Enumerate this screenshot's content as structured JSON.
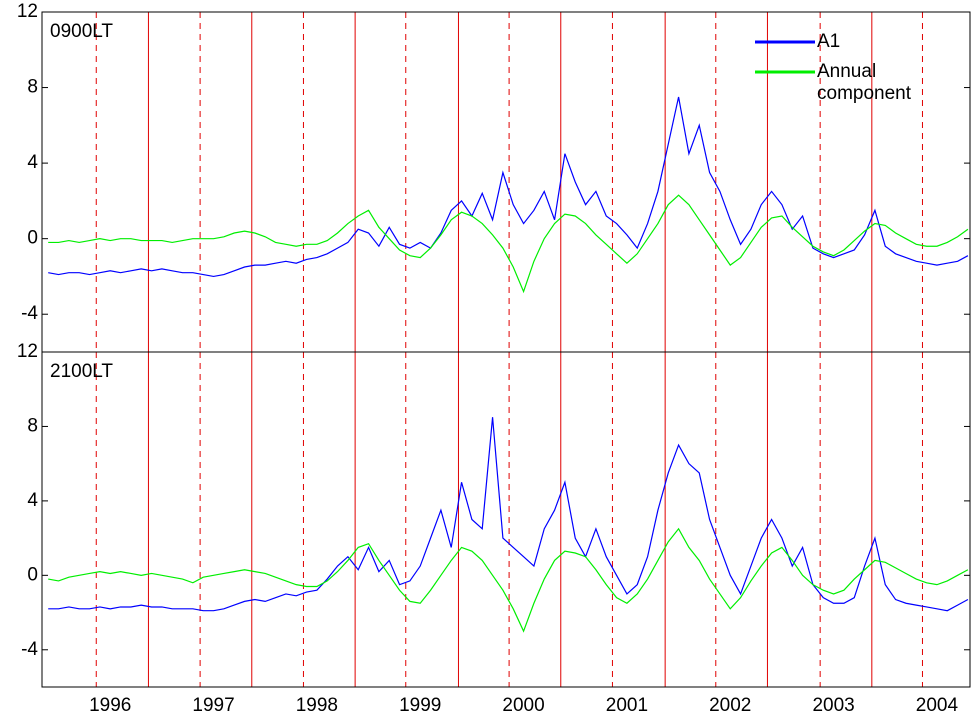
{
  "chart_data": [
    {
      "type": "line",
      "label": "0900LT",
      "legend": true,
      "legend_position": "upper right",
      "xlim": [
        1995.34,
        2004.32
      ],
      "ylim": [
        -6,
        12
      ],
      "yticks": [
        -4,
        0,
        4,
        8,
        12
      ],
      "dashed_lines": [
        1995.865,
        1996.87,
        1997.87,
        1998.86,
        1999.86,
        2000.86,
        2001.86,
        2002.87,
        2003.86
      ],
      "solid_lines": [
        1996.37,
        1997.37,
        1998.37,
        1999.37,
        2000.36,
        2001.37,
        2002.36,
        2003.37
      ],
      "line_color": "#e00000",
      "x": [
        1995.4,
        1995.5,
        1995.6,
        1995.7,
        1995.8,
        1995.9,
        1996.0,
        1996.1,
        1996.2,
        1996.3,
        1996.4,
        1996.5,
        1996.6,
        1996.7,
        1996.8,
        1996.9,
        1997.0,
        1997.1,
        1997.2,
        1997.3,
        1997.4,
        1997.5,
        1997.6,
        1997.7,
        1997.8,
        1997.9,
        1998.0,
        1998.1,
        1998.2,
        1998.3,
        1998.4,
        1998.5,
        1998.6,
        1998.7,
        1998.8,
        1998.9,
        1999.0,
        1999.1,
        1999.2,
        1999.3,
        1999.4,
        1999.5,
        1999.6,
        1999.7,
        1999.8,
        1999.9,
        2000.0,
        2000.1,
        2000.2,
        2000.3,
        2000.4,
        2000.5,
        2000.6,
        2000.7,
        2000.8,
        2000.9,
        2001.0,
        2001.1,
        2001.2,
        2001.3,
        2001.4,
        2001.5,
        2001.6,
        2001.7,
        2001.8,
        2001.9,
        2002.0,
        2002.1,
        2002.2,
        2002.3,
        2002.4,
        2002.5,
        2002.6,
        2002.7,
        2002.8,
        2002.9,
        2003.0,
        2003.1,
        2003.2,
        2003.3,
        2003.4,
        2003.5,
        2003.6,
        2003.7,
        2003.8,
        2003.9,
        2004.0,
        2004.1,
        2004.2,
        2004.3
      ],
      "series": [
        {
          "name": "A1",
          "color": "#0000ff",
          "values": [
            -1.8,
            -1.9,
            -1.8,
            -1.8,
            -1.9,
            -1.8,
            -1.7,
            -1.8,
            -1.7,
            -1.6,
            -1.7,
            -1.6,
            -1.7,
            -1.8,
            -1.8,
            -1.9,
            -2.0,
            -1.9,
            -1.7,
            -1.5,
            -1.4,
            -1.4,
            -1.3,
            -1.2,
            -1.3,
            -1.1,
            -1.0,
            -0.8,
            -0.5,
            -0.2,
            0.5,
            0.3,
            -0.4,
            0.6,
            -0.3,
            -0.5,
            -0.2,
            -0.5,
            0.3,
            1.5,
            2.0,
            1.2,
            2.4,
            1.0,
            3.5,
            1.8,
            0.8,
            1.5,
            2.5,
            1.0,
            4.5,
            3.0,
            1.8,
            2.5,
            1.2,
            0.8,
            0.2,
            -0.5,
            0.8,
            2.5,
            5.0,
            7.5,
            4.5,
            6.0,
            3.5,
            2.5,
            1.0,
            -0.3,
            0.5,
            1.8,
            2.5,
            1.8,
            0.5,
            1.2,
            -0.5,
            -0.8,
            -1.0,
            -0.8,
            -0.6,
            0.2,
            1.5,
            -0.4,
            -0.8,
            -1.0,
            -1.2,
            -1.3,
            -1.4,
            -1.3,
            -1.2,
            -0.9
          ]
        },
        {
          "name": "Annual component",
          "color": "#00ee00",
          "values": [
            -0.2,
            -0.2,
            -0.1,
            -0.2,
            -0.1,
            0.0,
            -0.1,
            0.0,
            0.0,
            -0.1,
            -0.1,
            -0.1,
            -0.2,
            -0.1,
            0.0,
            0.0,
            0.0,
            0.1,
            0.3,
            0.4,
            0.3,
            0.1,
            -0.2,
            -0.3,
            -0.4,
            -0.3,
            -0.3,
            -0.1,
            0.3,
            0.8,
            1.2,
            1.5,
            0.6,
            0.0,
            -0.6,
            -0.9,
            -1.0,
            -0.5,
            0.2,
            1.0,
            1.4,
            1.2,
            0.8,
            0.2,
            -0.5,
            -1.5,
            -2.8,
            -1.2,
            0.0,
            0.8,
            1.3,
            1.2,
            0.8,
            0.2,
            -0.3,
            -0.8,
            -1.3,
            -0.8,
            0.0,
            0.8,
            1.8,
            2.3,
            1.8,
            1.0,
            0.2,
            -0.6,
            -1.4,
            -1.0,
            -0.2,
            0.6,
            1.1,
            1.2,
            0.6,
            0.1,
            -0.4,
            -0.7,
            -0.9,
            -0.6,
            -0.1,
            0.4,
            0.8,
            0.7,
            0.3,
            0.0,
            -0.3,
            -0.4,
            -0.4,
            -0.2,
            0.1,
            0.5
          ]
        }
      ]
    },
    {
      "type": "line",
      "label": "2100LT",
      "legend": false,
      "xlim": [
        1995.34,
        2004.32
      ],
      "ylim": [
        -6,
        12
      ],
      "yticks": [
        -4,
        0,
        4,
        8,
        12
      ],
      "xticks": [
        1996,
        1997,
        1998,
        1999,
        2000,
        2001,
        2002,
        2003,
        2004
      ],
      "dashed_lines": [
        1995.865,
        1996.87,
        1997.87,
        1998.86,
        1999.86,
        2000.86,
        2001.86,
        2002.87,
        2003.86
      ],
      "solid_lines": [
        1996.37,
        1997.37,
        1998.37,
        1999.37,
        2000.36,
        2001.37,
        2002.36,
        2003.37
      ],
      "line_color": "#e00000",
      "x": [
        1995.4,
        1995.5,
        1995.6,
        1995.7,
        1995.8,
        1995.9,
        1996.0,
        1996.1,
        1996.2,
        1996.3,
        1996.4,
        1996.5,
        1996.6,
        1996.7,
        1996.8,
        1996.9,
        1997.0,
        1997.1,
        1997.2,
        1997.3,
        1997.4,
        1997.5,
        1997.6,
        1997.7,
        1997.8,
        1997.9,
        1998.0,
        1998.1,
        1998.2,
        1998.3,
        1998.4,
        1998.5,
        1998.6,
        1998.7,
        1998.8,
        1998.9,
        1999.0,
        1999.1,
        1999.2,
        1999.3,
        1999.4,
        1999.5,
        1999.6,
        1999.7,
        1999.8,
        1999.9,
        2000.0,
        2000.1,
        2000.2,
        2000.3,
        2000.4,
        2000.5,
        2000.6,
        2000.7,
        2000.8,
        2000.9,
        2001.0,
        2001.1,
        2001.2,
        2001.3,
        2001.4,
        2001.5,
        2001.6,
        2001.7,
        2001.8,
        2001.9,
        2002.0,
        2002.1,
        2002.2,
        2002.3,
        2002.4,
        2002.5,
        2002.6,
        2002.7,
        2002.8,
        2002.9,
        2003.0,
        2003.1,
        2003.2,
        2003.3,
        2003.4,
        2003.5,
        2003.6,
        2003.7,
        2003.8,
        2003.9,
        2004.0,
        2004.1,
        2004.2,
        2004.3
      ],
      "series": [
        {
          "name": "A1",
          "color": "#0000ff",
          "values": [
            -1.8,
            -1.8,
            -1.7,
            -1.8,
            -1.8,
            -1.7,
            -1.8,
            -1.7,
            -1.7,
            -1.6,
            -1.7,
            -1.7,
            -1.8,
            -1.8,
            -1.8,
            -1.9,
            -1.9,
            -1.8,
            -1.6,
            -1.4,
            -1.3,
            -1.4,
            -1.2,
            -1.0,
            -1.1,
            -0.9,
            -0.8,
            -0.2,
            0.5,
            1.0,
            0.3,
            1.5,
            0.2,
            0.8,
            -0.5,
            -0.3,
            0.5,
            2.0,
            3.5,
            1.5,
            5.0,
            3.0,
            2.5,
            8.5,
            2.0,
            1.5,
            1.0,
            0.5,
            2.5,
            3.5,
            5.0,
            2.0,
            1.0,
            2.5,
            1.0,
            0.0,
            -1.0,
            -0.5,
            1.0,
            3.5,
            5.5,
            7.0,
            6.0,
            5.5,
            3.0,
            1.5,
            0.0,
            -1.0,
            0.5,
            2.0,
            3.0,
            2.0,
            0.5,
            1.5,
            -0.5,
            -1.2,
            -1.5,
            -1.5,
            -1.2,
            0.5,
            2.0,
            -0.5,
            -1.3,
            -1.5,
            -1.6,
            -1.7,
            -1.8,
            -1.9,
            -1.6,
            -1.3
          ]
        },
        {
          "name": "Annual component",
          "color": "#00ee00",
          "values": [
            -0.2,
            -0.3,
            -0.1,
            0.0,
            0.1,
            0.2,
            0.1,
            0.2,
            0.1,
            0.0,
            0.1,
            0.0,
            -0.1,
            -0.2,
            -0.4,
            -0.1,
            0.0,
            0.1,
            0.2,
            0.3,
            0.2,
            0.1,
            -0.1,
            -0.3,
            -0.5,
            -0.6,
            -0.6,
            -0.3,
            0.2,
            0.8,
            1.5,
            1.7,
            0.8,
            0.0,
            -0.8,
            -1.4,
            -1.5,
            -0.8,
            0.0,
            0.8,
            1.5,
            1.3,
            0.8,
            0.0,
            -0.8,
            -1.8,
            -3.0,
            -1.5,
            -0.2,
            0.8,
            1.3,
            1.2,
            1.0,
            0.3,
            -0.5,
            -1.2,
            -1.5,
            -1.0,
            -0.2,
            0.8,
            1.8,
            2.5,
            1.5,
            0.8,
            -0.2,
            -1.0,
            -1.8,
            -1.2,
            -0.3,
            0.5,
            1.2,
            1.5,
            0.8,
            0.0,
            -0.5,
            -0.8,
            -1.0,
            -0.8,
            -0.2,
            0.3,
            0.8,
            0.7,
            0.4,
            0.1,
            -0.2,
            -0.4,
            -0.5,
            -0.3,
            0.0,
            0.3
          ]
        }
      ]
    }
  ]
}
